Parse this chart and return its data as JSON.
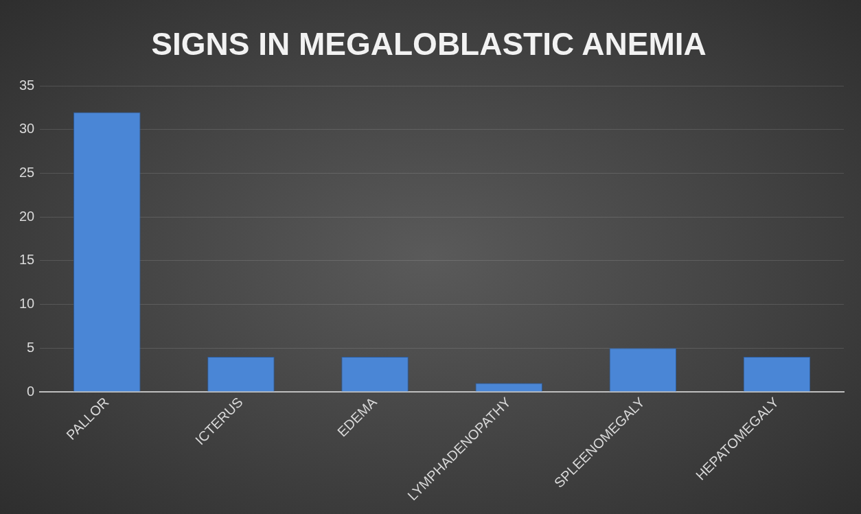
{
  "chart_data": {
    "type": "bar",
    "title": "SIGNS IN MEGALOBLASTIC ANEMIA",
    "categories": [
      "PALLOR",
      "ICTERUS",
      "EDEMA",
      "LYMPHADENOPATHY",
      "SPLEENOMEGALY",
      "HEPATOMEGALY"
    ],
    "values": [
      32,
      4,
      4,
      1,
      5,
      4
    ],
    "color": "#4a86d6",
    "ylim": [
      0,
      35
    ],
    "yticks": [
      0,
      5,
      10,
      15,
      20,
      25,
      30,
      35
    ],
    "grid": "y"
  }
}
